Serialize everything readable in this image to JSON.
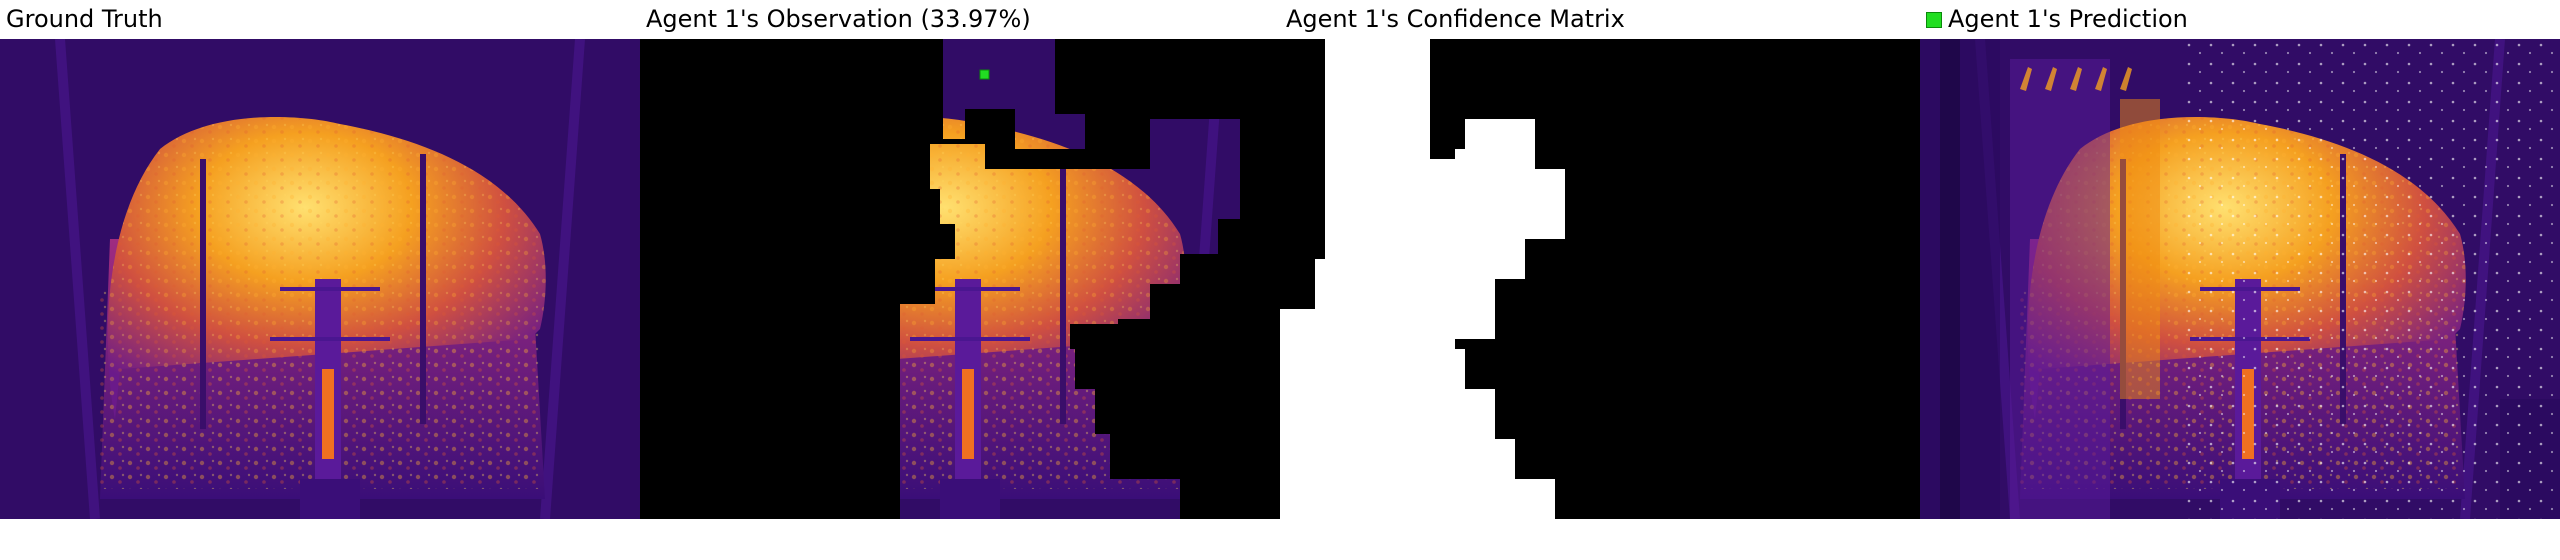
{
  "panels": [
    {
      "title": "Ground Truth"
    },
    {
      "title": "Agent 1's Observation (33.97%)"
    },
    {
      "title": "Agent 1's Confidence Matrix"
    },
    {
      "title": "Agent 1's Prediction"
    }
  ],
  "legend": {
    "color": "#22dd22"
  },
  "colors": {
    "background_purple": "#2a0a5e",
    "mid_purple": "#5a1a9a",
    "magenta": "#b0208a",
    "orange": "#f08a10",
    "yellow": "#ffd040",
    "mask": "#000000",
    "confidence": "#ffffff",
    "agent_marker": "#22dd22"
  }
}
